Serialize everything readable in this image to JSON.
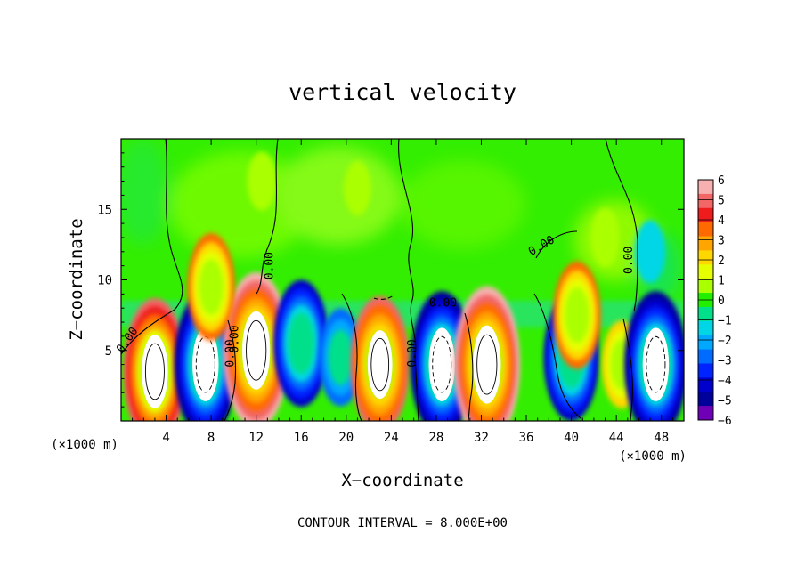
{
  "chart_data": {
    "type": "heatmap",
    "title": "vertical velocity",
    "xlabel": "X−coordinate",
    "ylabel": "Z−coordinate",
    "x_unit_left": "(×1000 m)",
    "x_unit_right": "(×1000 m)",
    "footer": "CONTOUR INTERVAL = 8.000E+00",
    "xlim": [
      0,
      50
    ],
    "ylim": [
      0,
      20
    ],
    "x_ticks": [
      4,
      8,
      12,
      16,
      20,
      24,
      28,
      32,
      36,
      40,
      44,
      48
    ],
    "x_tick_labels": [
      "4",
      "8",
      "12",
      "16",
      "20",
      "24",
      "28",
      "32",
      "36",
      "40",
      "44",
      "48"
    ],
    "y_ticks": [
      5,
      10,
      15
    ],
    "y_tick_labels": [
      "5",
      "10",
      "15"
    ],
    "contour_labels": [
      "0.00",
      "0.00",
      "0.00",
      "0.00",
      "0.00",
      "0.00",
      "0.00",
      "0.00"
    ],
    "colorbar": {
      "min": -6,
      "max": 6,
      "labels": [
        "6",
        "5",
        "4",
        "3",
        "2",
        "1",
        "0",
        "−1",
        "−2",
        "−3",
        "−4",
        "−5",
        "−6"
      ],
      "colors": [
        "#f7b0b0",
        "#f26666",
        "#ee1c1c",
        "#ff6a00",
        "#ffa500",
        "#ffd700",
        "#e6ff00",
        "#aaff00",
        "#22ee00",
        "#00e08a",
        "#00d6e6",
        "#00a8ff",
        "#006cff",
        "#0024ff",
        "#0000cc",
        "#00009a",
        "#7000b8"
      ]
    },
    "cells": [
      {
        "x": 3.0,
        "z": 3.5,
        "w": 5.5
      },
      {
        "x": 7.5,
        "z": 4.0,
        "w": -5.5
      },
      {
        "x": 12.0,
        "z": 5.0,
        "w": 6.0
      },
      {
        "x": 16.0,
        "z": 5.5,
        "w": -4.5
      },
      {
        "x": 19.5,
        "z": 4.5,
        "w": -3.0
      },
      {
        "x": 23.0,
        "z": 4.0,
        "w": 5.0
      },
      {
        "x": 28.5,
        "z": 4.0,
        "w": -5.5
      },
      {
        "x": 32.5,
        "z": 4.0,
        "w": 6.0
      },
      {
        "x": 40.0,
        "z": 4.5,
        "w": -4.5
      },
      {
        "x": 40.5,
        "z": 7.5,
        "w": 3.5
      },
      {
        "x": 44.5,
        "z": 4.0,
        "w": 2.5
      },
      {
        "x": 47.5,
        "z": 4.0,
        "w": -5.5
      },
      {
        "x": 8.0,
        "z": 9.5,
        "w": 3.5
      },
      {
        "x": 12.5,
        "z": 17.0,
        "w": 1.0
      },
      {
        "x": 21.0,
        "z": 16.5,
        "w": 0.8
      },
      {
        "x": 43.0,
        "z": 13.0,
        "w": 1.0
      },
      {
        "x": 47.0,
        "z": 12.0,
        "w": -1.2
      }
    ]
  }
}
